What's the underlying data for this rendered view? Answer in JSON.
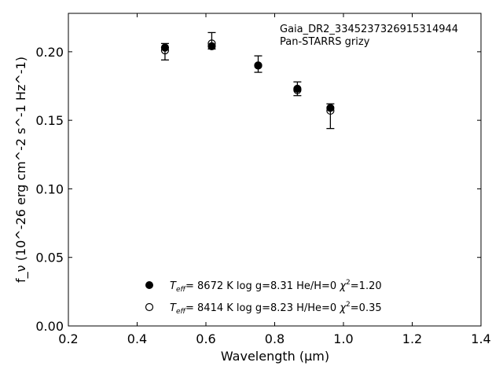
{
  "chart_data": {
    "type": "scatter",
    "title": "",
    "xlabel": "Wavelength (μm)",
    "ylabel": "f_ν (10^-26 erg cm^-2 s^-1 Hz^-1)",
    "xlim": [
      0.2,
      1.4
    ],
    "ylim": [
      0.0,
      0.228
    ],
    "xticks": [
      "0.2",
      "0.4",
      "0.6",
      "0.8",
      "1.0",
      "1.2",
      "1.4"
    ],
    "yticks": [
      "0.00",
      "0.05",
      "0.10",
      "0.15",
      "0.20"
    ],
    "grid": false,
    "annotation": [
      "Gaia_DR2_3345237326915314944",
      "Pan-STARRS grizy"
    ],
    "observed": {
      "x": [
        0.481,
        0.617,
        0.752,
        0.866,
        0.962
      ],
      "y": [
        0.2,
        0.208,
        0.191,
        0.173,
        0.153
      ],
      "yerr": [
        0.006,
        0.006,
        0.006,
        0.005,
        0.009
      ]
    },
    "series": [
      {
        "marker": "filled-circle",
        "x": [
          0.481,
          0.617,
          0.752,
          0.866,
          0.962
        ],
        "y": [
          0.203,
          0.204,
          0.19,
          0.173,
          0.159
        ]
      },
      {
        "marker": "open-circle",
        "x": [
          0.481,
          0.617,
          0.752,
          0.866,
          0.962
        ],
        "y": [
          0.201,
          0.206,
          0.19,
          0.172,
          0.157
        ]
      }
    ],
    "legend": {
      "placement": "lower-center",
      "entries": [
        {
          "teff": "8672 K",
          "logg": "log g=8.31",
          "comp": "He/H=0",
          "chi2": "=1.20"
        },
        {
          "teff": "8414 K",
          "logg": "log g=8.23",
          "comp": "H/He=0",
          "chi2": "=0.35"
        }
      ]
    }
  }
}
